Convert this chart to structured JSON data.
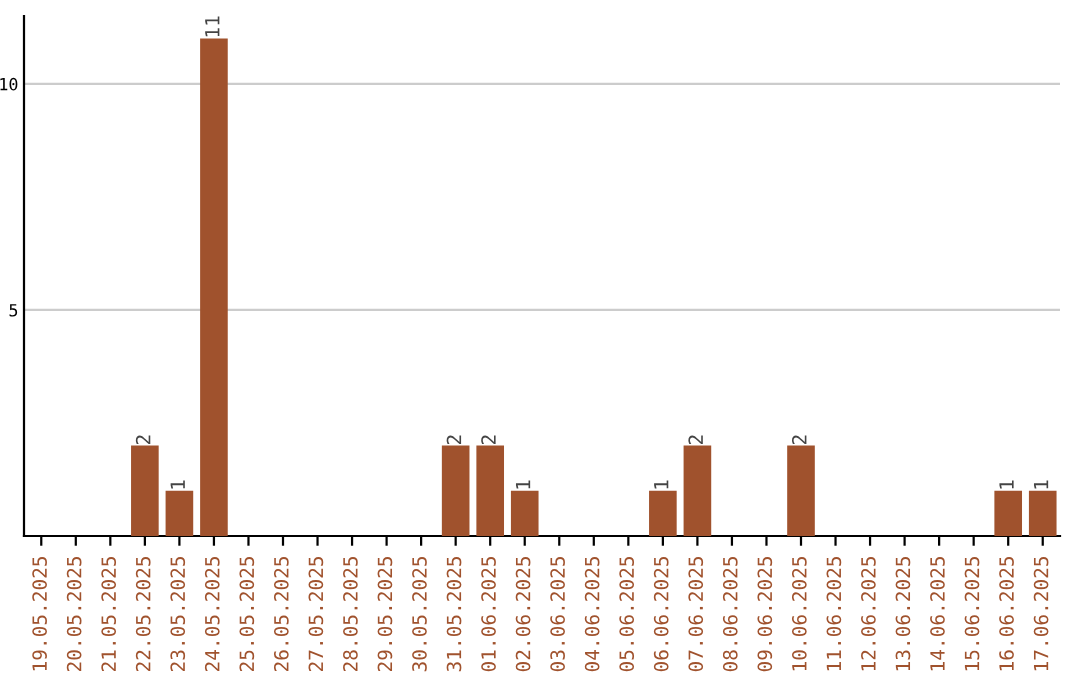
{
  "chart_data": {
    "type": "bar",
    "categories": [
      "19.05.2025",
      "20.05.2025",
      "21.05.2025",
      "22.05.2025",
      "23.05.2025",
      "24.05.2025",
      "25.05.2025",
      "26.05.2025",
      "27.05.2025",
      "28.05.2025",
      "29.05.2025",
      "30.05.2025",
      "31.05.2025",
      "01.06.2025",
      "02.06.2025",
      "03.06.2025",
      "04.06.2025",
      "05.06.2025",
      "06.06.2025",
      "07.06.2025",
      "08.06.2025",
      "09.06.2025",
      "10.06.2025",
      "11.06.2025",
      "12.06.2025",
      "13.06.2025",
      "14.06.2025",
      "15.06.2025",
      "16.06.2025",
      "17.06.2025"
    ],
    "values": [
      0,
      0,
      0,
      2,
      1,
      11,
      0,
      0,
      0,
      0,
      0,
      0,
      2,
      2,
      1,
      0,
      0,
      0,
      1,
      2,
      0,
      0,
      2,
      0,
      0,
      0,
      0,
      0,
      1,
      1
    ],
    "value_labels": [
      null,
      null,
      null,
      "2",
      "1",
      "11",
      null,
      null,
      null,
      null,
      null,
      null,
      "2",
      "2",
      "1",
      null,
      null,
      null,
      "1",
      "2",
      null,
      null,
      "2",
      null,
      null,
      null,
      null,
      null,
      "1",
      "1"
    ],
    "color": "#a0522d",
    "ylim": [
      0,
      11.5
    ],
    "yticks": [
      5,
      10
    ],
    "grid": "y",
    "legend": false
  }
}
